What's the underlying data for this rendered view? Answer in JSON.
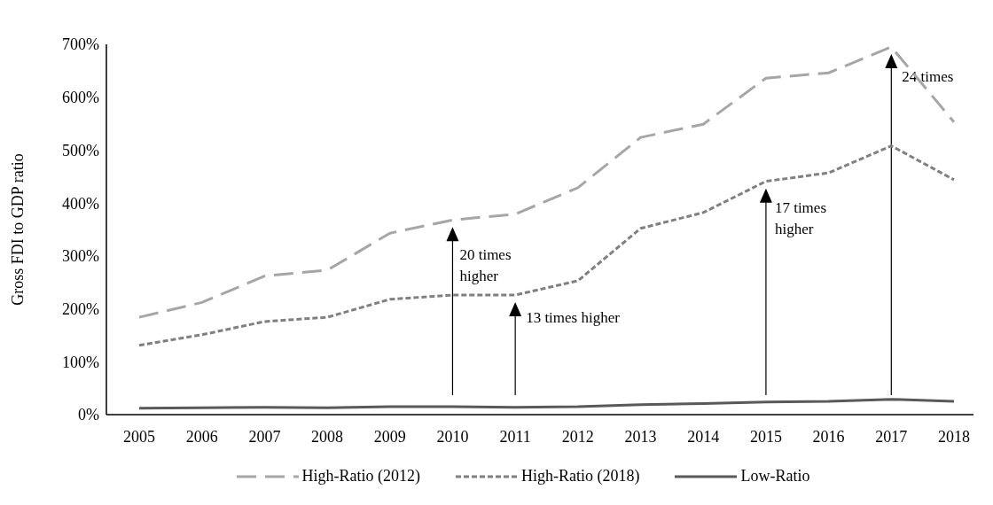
{
  "chart_data": {
    "type": "line",
    "ylabel": "Gross FDI to GDP ratio",
    "categories": [
      "2005",
      "2006",
      "2007",
      "2008",
      "2009",
      "2010",
      "2011",
      "2012",
      "2013",
      "2014",
      "2015",
      "2016",
      "2017",
      "2018"
    ],
    "series": [
      {
        "name": "High-Ratio (2012)",
        "color": "#a6a6a6",
        "line_style": "dashed",
        "values": [
          184,
          212,
          262,
          273,
          343,
          368,
          379,
          429,
          524,
          549,
          636,
          646,
          695,
          553
        ]
      },
      {
        "name": "High-Ratio (2018)",
        "color": "#808080",
        "line_style": "dashed",
        "values": [
          131,
          151,
          176,
          184,
          218,
          226,
          226,
          253,
          352,
          382,
          441,
          457,
          508,
          444
        ]
      },
      {
        "name": "Low-Ratio",
        "color": "#595959",
        "line_style": "solid",
        "values": [
          12,
          13,
          14,
          13,
          15,
          15,
          14,
          15,
          19,
          21,
          24,
          25,
          29,
          25
        ]
      }
    ],
    "ylim": [
      0,
      700
    ],
    "yticks": [
      {
        "value": 0,
        "label": "0%"
      },
      {
        "value": 100,
        "label": "100%"
      },
      {
        "value": 200,
        "label": "200%"
      },
      {
        "value": 300,
        "label": "300%"
      },
      {
        "value": 400,
        "label": "400%"
      },
      {
        "value": 500,
        "label": "500%"
      },
      {
        "value": 600,
        "label": "600%"
      },
      {
        "value": 700,
        "label": "700%"
      }
    ],
    "grid": false,
    "legend": "bottom",
    "marker": "none",
    "annotations": [
      {
        "text": "20 times higher",
        "x": "2010",
        "y": 368
      },
      {
        "text": "13 times higher",
        "x": "2011",
        "y": 226
      },
      {
        "text": "17 times higher",
        "x": "2015",
        "y": 441
      },
      {
        "text": "24 times",
        "x": "2017",
        "y": 695
      }
    ]
  }
}
